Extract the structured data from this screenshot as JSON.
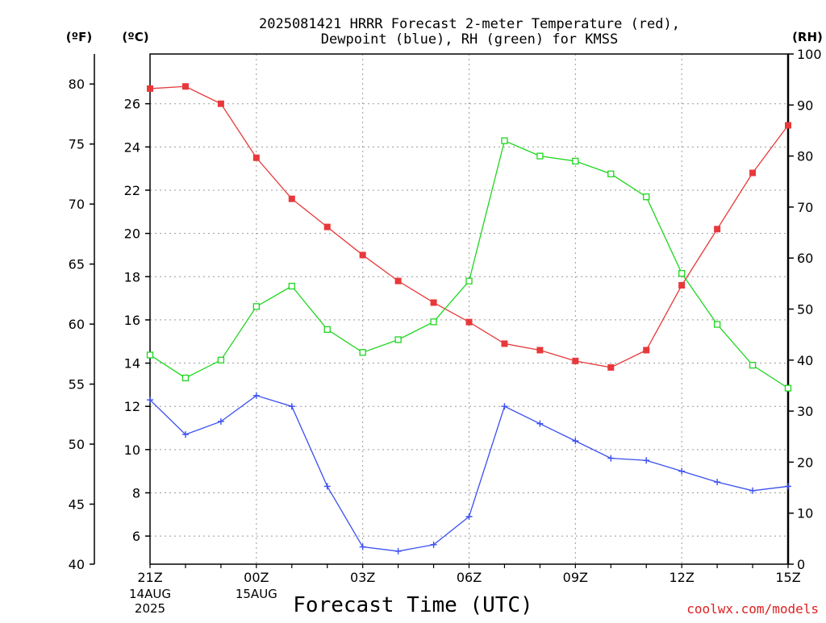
{
  "chart_data": {
    "type": "line",
    "title_line1": "2025081421 HRRR Forecast 2-meter Temperature (red),",
    "title_line2": "Dewpoint (blue), RH (green) for KMSS",
    "xlabel": "Forecast Time (UTC)",
    "credit": "coolwx.com/models",
    "unit_labels": {
      "fahrenheit": "(ºF)",
      "celsius": "(ºC)",
      "rh": "(RH)"
    },
    "x_categories": [
      "21Z",
      "22Z",
      "23Z",
      "00Z",
      "01Z",
      "02Z",
      "03Z",
      "04Z",
      "05Z",
      "06Z",
      "07Z",
      "08Z",
      "09Z",
      "10Z",
      "11Z",
      "12Z",
      "13Z",
      "14Z",
      "15Z"
    ],
    "x_tick_labels": [
      {
        "index": 0,
        "label": "21Z",
        "date": "14AUG",
        "year": "2025"
      },
      {
        "index": 3,
        "label": "00Z",
        "date": "15AUG",
        "year": ""
      },
      {
        "index": 6,
        "label": "03Z",
        "date": "",
        "year": ""
      },
      {
        "index": 9,
        "label": "06Z",
        "date": "",
        "year": ""
      },
      {
        "index": 12,
        "label": "09Z",
        "date": "",
        "year": ""
      },
      {
        "index": 15,
        "label": "12Z",
        "date": "",
        "year": ""
      },
      {
        "index": 18,
        "label": "15Z",
        "date": "",
        "year": ""
      }
    ],
    "celsius_axis": {
      "ylim": [
        4.7,
        28.3
      ],
      "ticks": [
        6,
        8,
        10,
        12,
        14,
        16,
        18,
        20,
        22,
        24,
        26
      ]
    },
    "fahrenheit_axis": {
      "ylim": [
        40,
        82.5
      ],
      "ticks": [
        40,
        45,
        50,
        55,
        60,
        65,
        70,
        75,
        80
      ]
    },
    "rh_axis": {
      "ylim": [
        0,
        100
      ],
      "ticks": [
        0,
        10,
        20,
        30,
        40,
        50,
        60,
        70,
        80,
        90,
        100
      ]
    },
    "grid": true,
    "series": [
      {
        "key": "temperature",
        "axis": "celsius",
        "color": "#e8383a",
        "marker": "filled-square",
        "values": [
          26.7,
          26.8,
          26.0,
          23.5,
          21.6,
          20.3,
          19.0,
          17.8,
          16.8,
          15.9,
          14.9,
          14.6,
          14.1,
          13.8,
          14.6,
          17.6,
          20.2,
          22.8,
          25.0
        ]
      },
      {
        "key": "dewpoint",
        "axis": "celsius",
        "color": "#3a4ff0",
        "marker": "plus",
        "values": [
          12.3,
          10.7,
          11.3,
          12.5,
          12.0,
          8.3,
          5.5,
          5.3,
          5.6,
          6.9,
          12.0,
          11.2,
          10.4,
          9.6,
          9.5,
          9.0,
          8.5,
          8.1,
          8.3
        ]
      },
      {
        "key": "rh",
        "axis": "rh",
        "color": "#1ed61e",
        "marker": "open-square",
        "values": [
          41,
          36.5,
          40,
          50.5,
          54.5,
          46,
          41.5,
          44,
          47.5,
          55.5,
          83,
          80,
          79,
          76.5,
          72,
          57,
          47,
          39,
          34.5
        ]
      }
    ]
  }
}
